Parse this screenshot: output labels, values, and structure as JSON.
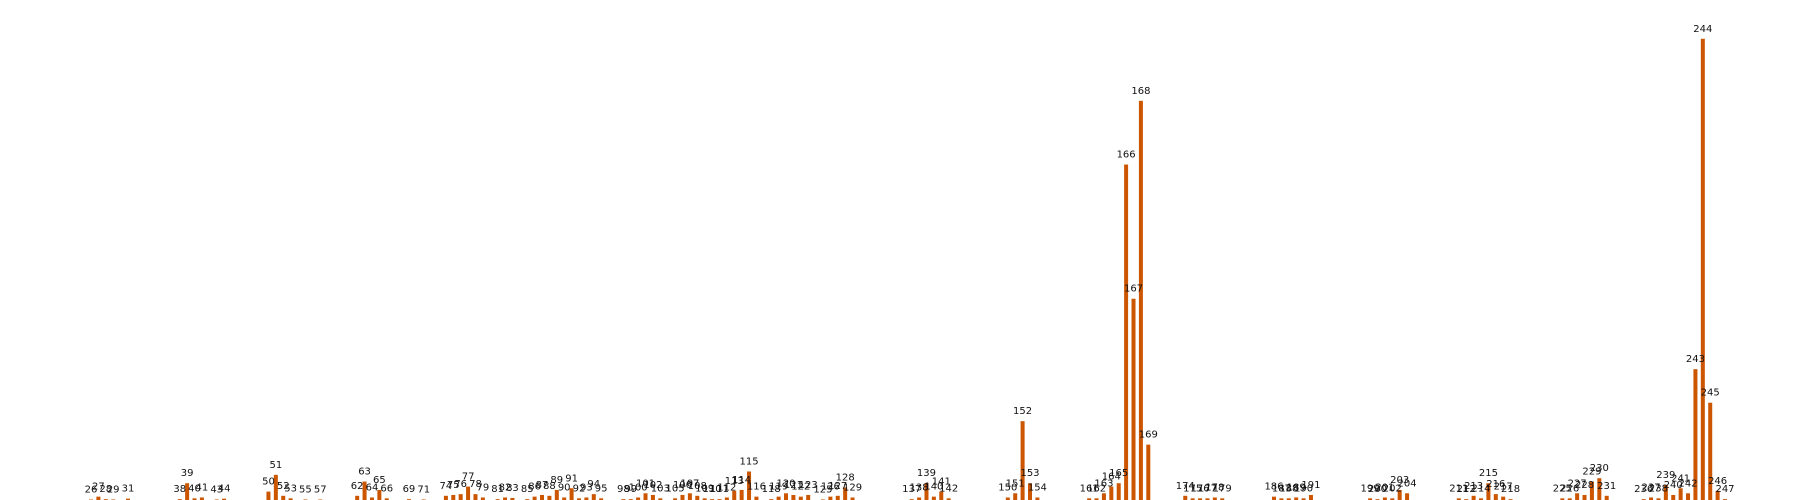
{
  "chart_data": {
    "type": "bar",
    "title": "",
    "xlabel": "",
    "ylabel": "",
    "grid": false,
    "legend": "none",
    "bar_color": "#cc5500",
    "ylim": [
      0,
      2850
    ],
    "x": [
      26,
      27,
      28,
      29,
      31,
      38,
      39,
      40,
      41,
      43,
      44,
      50,
      51,
      52,
      53,
      55,
      57,
      62,
      63,
      64,
      65,
      66,
      69,
      71,
      74,
      75,
      76,
      77,
      78,
      79,
      81,
      82,
      83,
      85,
      86,
      87,
      88,
      89,
      90,
      91,
      92,
      93,
      94,
      95,
      98,
      99,
      100,
      101,
      102,
      103,
      105,
      106,
      107,
      108,
      109,
      110,
      111,
      112,
      113,
      114,
      115,
      116,
      118,
      119,
      120,
      121,
      122,
      123,
      125,
      126,
      127,
      128,
      129,
      137,
      138,
      139,
      140,
      141,
      142,
      150,
      151,
      152,
      153,
      154,
      161,
      162,
      163,
      164,
      165,
      166,
      167,
      168,
      169,
      174,
      175,
      176,
      177,
      178,
      179,
      186,
      187,
      188,
      189,
      190,
      191,
      199,
      200,
      201,
      202,
      203,
      204,
      211,
      212,
      213,
      214,
      215,
      216,
      217,
      218,
      225,
      226,
      227,
      228,
      229,
      230,
      231,
      236,
      237,
      238,
      239,
      240,
      241,
      242,
      243,
      244,
      245,
      246,
      247
    ],
    "values": [
      2,
      20,
      5,
      1,
      8,
      5,
      100,
      10,
      15,
      1,
      8,
      50,
      150,
      25,
      10,
      1,
      1,
      25,
      110,
      15,
      60,
      10,
      5,
      1,
      25,
      30,
      35,
      80,
      35,
      15,
      5,
      15,
      12,
      5,
      20,
      30,
      25,
      60,
      15,
      70,
      10,
      15,
      35,
      10,
      5,
      5,
      15,
      40,
      30,
      10,
      10,
      30,
      40,
      25,
      10,
      5,
      5,
      15,
      55,
      60,
      170,
      20,
      5,
      20,
      40,
      30,
      20,
      30,
      1,
      20,
      25,
      75,
      15,
      5,
      15,
      100,
      20,
      50,
      10,
      15,
      40,
      470,
      100,
      15,
      10,
      10,
      40,
      80,
      100,
      2000,
      1200,
      2380,
      330,
      25,
      10,
      10,
      10,
      15,
      10,
      20,
      10,
      10,
      15,
      10,
      30,
      10,
      5,
      15,
      10,
      60,
      40,
      10,
      5,
      25,
      10,
      100,
      35,
      20,
      5,
      10,
      10,
      40,
      30,
      110,
      130,
      25,
      5,
      15,
      10,
      90,
      30,
      70,
      40,
      780,
      2750,
      580,
      55,
      5
    ]
  }
}
